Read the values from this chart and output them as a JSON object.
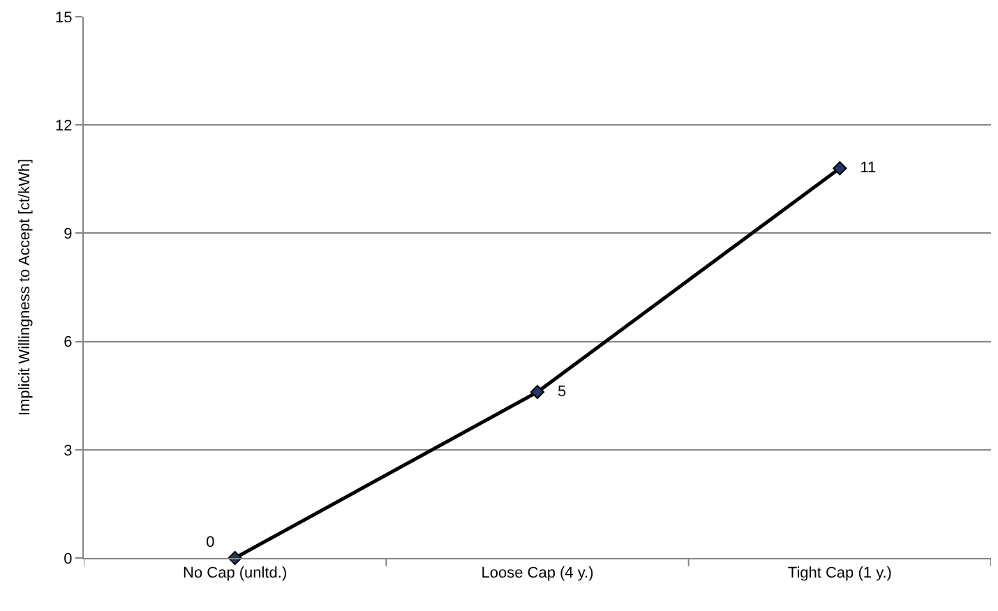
{
  "chart_data": {
    "type": "line",
    "ylabel": "Implicit Willingness to Accept [ct/kWh]",
    "categories": [
      "No Cap (unltd.)",
      "Loose Cap (4 y.)",
      "Tight Cap (1 y.)"
    ],
    "series": [
      {
        "color": "#000000",
        "values": [
          0,
          4.6,
          10.8
        ],
        "value_labels": [
          "0",
          "5",
          "11"
        ]
      }
    ],
    "ylim": [
      0,
      15
    ],
    "yticks": [
      0,
      3,
      6,
      9,
      12,
      15
    ],
    "grid": "y",
    "marker": "diamond",
    "line_style": "solid"
  }
}
